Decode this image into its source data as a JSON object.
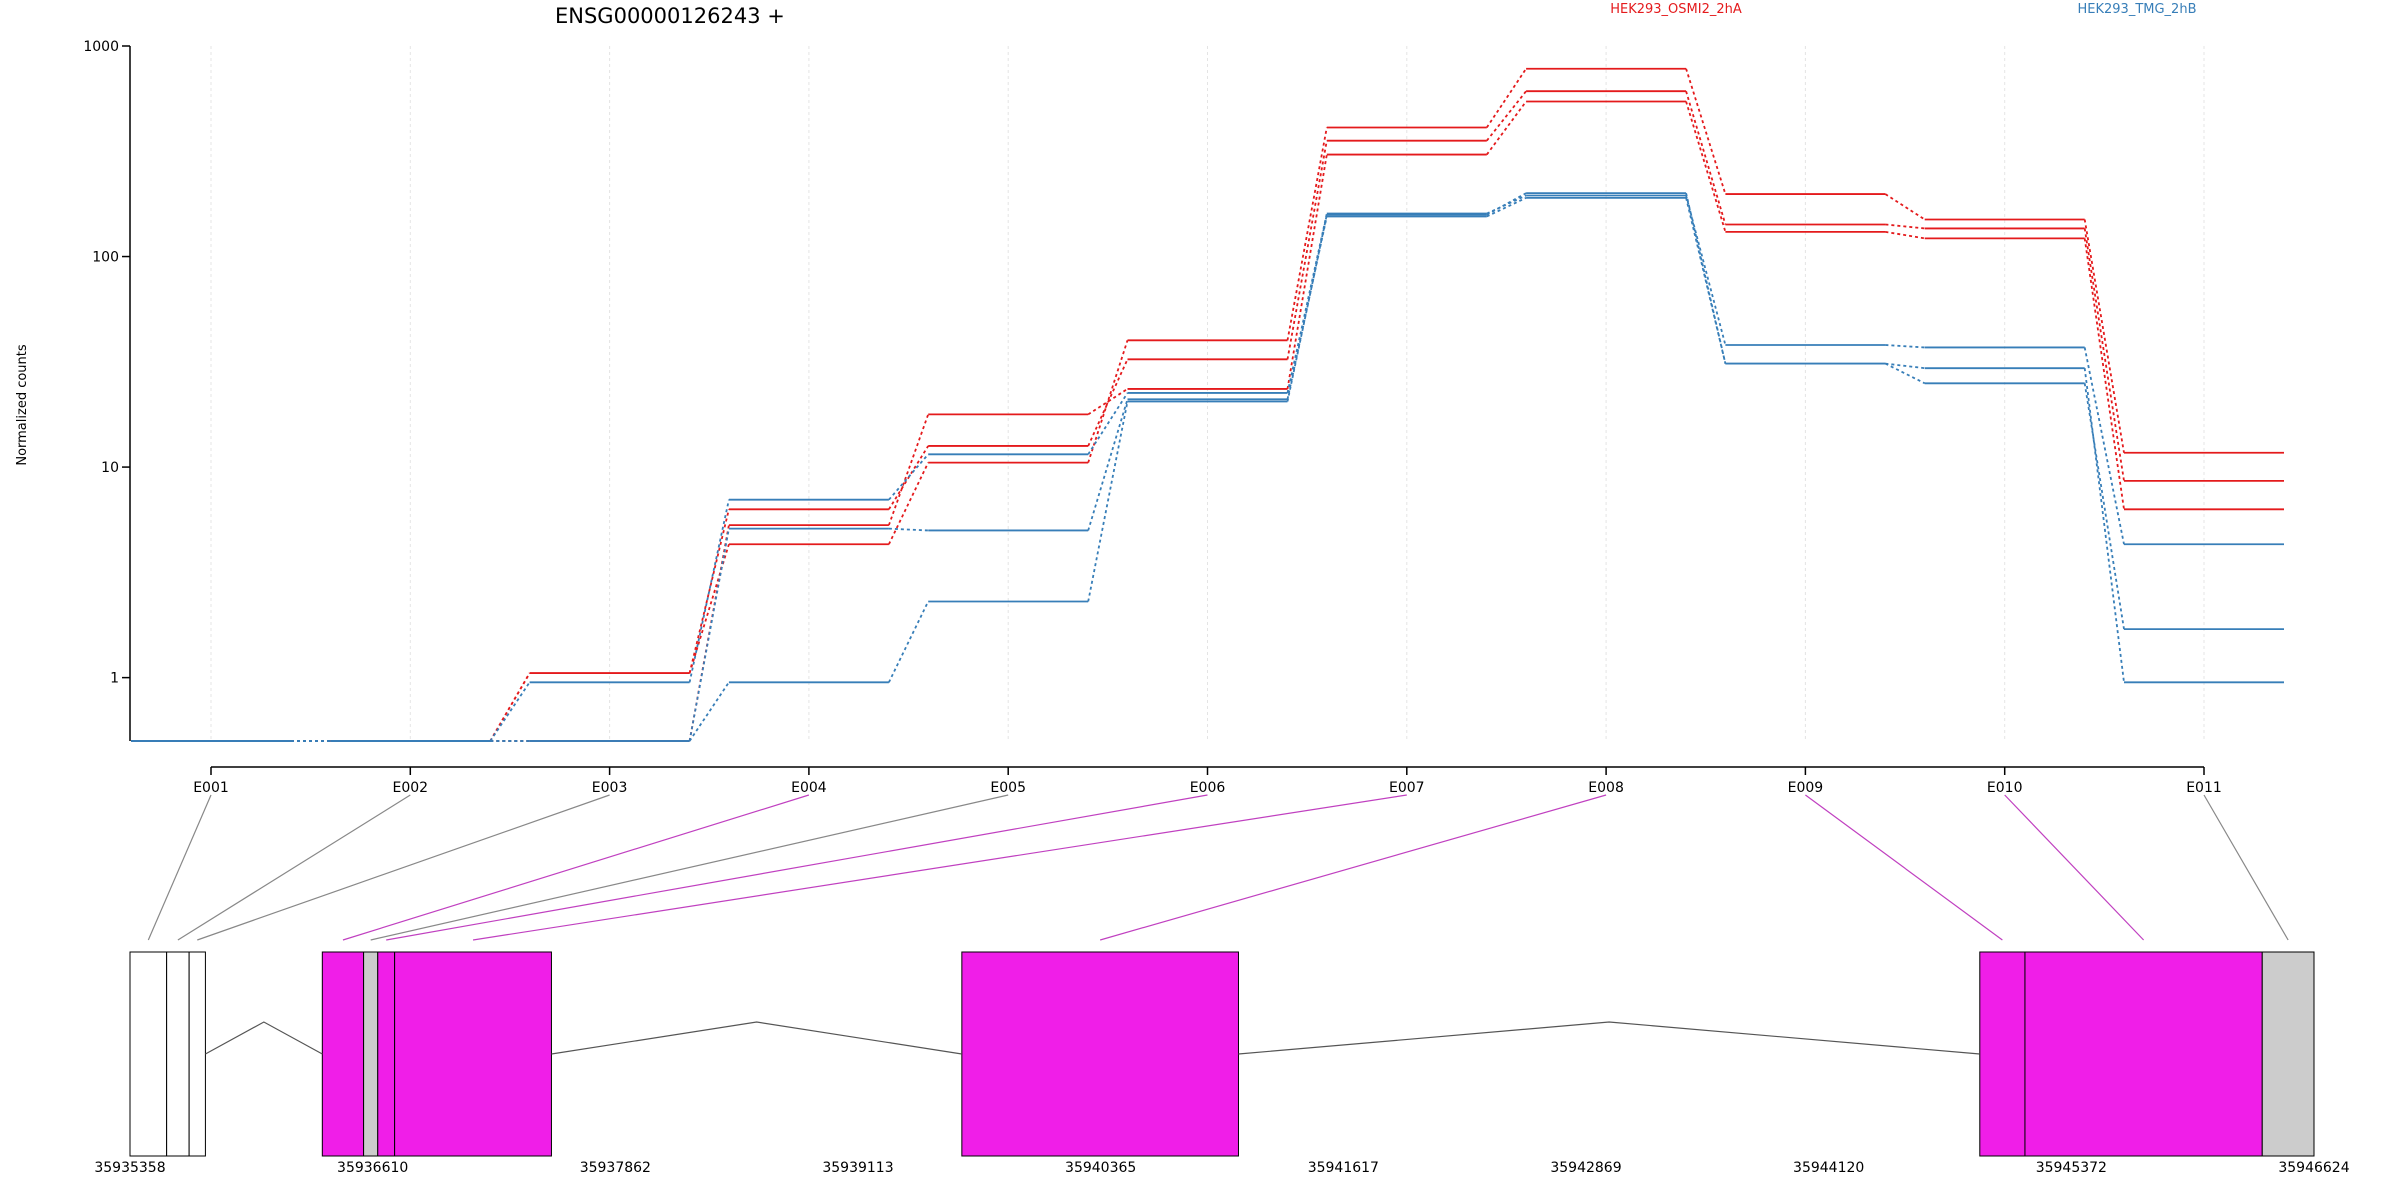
{
  "chart_data": {
    "type": "line",
    "title": "ENSG00000126243 +",
    "ylabel": "Normalized counts",
    "xlabel": "",
    "y_scale": "log",
    "ylim": [
      0.5,
      1000
    ],
    "y_ticks": [
      "1",
      "10",
      "100",
      "1000"
    ],
    "y_tick_values": [
      1,
      10,
      100,
      1000
    ],
    "grid": "vertical",
    "legend": {
      "placement": "top-right",
      "entries": [
        {
          "label": "HEK293_OSMI2_2hA",
          "color": "#e41a1c"
        },
        {
          "label": "HEK293_TMG_2hB",
          "color": "#377eb8"
        }
      ]
    },
    "categories": [
      "E001",
      "E002",
      "E003",
      "E004",
      "E005",
      "E006",
      "E007",
      "E008",
      "E009",
      "E010",
      "E011"
    ],
    "series": [
      {
        "color": "#e41a1c",
        "values": [
          0.5,
          0.5,
          1.05,
          6.3,
          12.6,
          32.5,
          355,
          610,
          142,
          136,
          8.6
        ]
      },
      {
        "color": "#e41a1c",
        "values": [
          0.5,
          0.5,
          1.05,
          4.3,
          10.5,
          40,
          410,
          780,
          198,
          150,
          11.7
        ]
      },
      {
        "color": "#e41a1c",
        "values": [
          0.5,
          0.5,
          0.5,
          5.3,
          17.8,
          23.5,
          305,
          545,
          131,
          122,
          6.3
        ]
      },
      {
        "color": "#377eb8",
        "values": [
          0.5,
          0.5,
          0.95,
          7.0,
          11.5,
          22.5,
          160,
          195,
          38,
          37,
          4.3
        ]
      },
      {
        "color": "#377eb8",
        "values": [
          0.5,
          0.5,
          0.5,
          5.1,
          5.0,
          21.0,
          155,
          190,
          31,
          25,
          1.7
        ]
      },
      {
        "color": "#377eb8",
        "values": [
          0.5,
          0.5,
          0.5,
          0.95,
          2.3,
          20.5,
          158,
          200,
          31,
          29.5,
          0.95
        ]
      }
    ],
    "exon_colors": [
      "white",
      "white",
      "white",
      "magenta",
      "grey",
      "magenta",
      "magenta",
      "magenta",
      "magenta",
      "magenta",
      "grey"
    ],
    "gene_model": {
      "x_ticks": [
        "35935358",
        "35936610",
        "35937862",
        "35939113",
        "35940365",
        "35941617",
        "35942869",
        "35944120",
        "35945372",
        "35946624"
      ],
      "range": [
        35935358,
        35946624
      ],
      "highlight_color": "#f01ee8",
      "neutral_color": "#cccccc",
      "exons": [
        {
          "id": "E001",
          "start": 35935358,
          "end": 35935547
        },
        {
          "id": "E002",
          "start": 35935547,
          "end": 35935663
        },
        {
          "id": "E003",
          "start": 35935663,
          "end": 35935747
        },
        {
          "id": "E004",
          "start": 35936350,
          "end": 35936563
        },
        {
          "id": "E005",
          "start": 35936563,
          "end": 35936636
        },
        {
          "id": "E006",
          "start": 35936636,
          "end": 35936723
        },
        {
          "id": "E007",
          "start": 35936723,
          "end": 35937532
        },
        {
          "id": "E008",
          "start": 35939649,
          "end": 35941076
        },
        {
          "id": "E009",
          "start": 35944900,
          "end": 35945133
        },
        {
          "id": "E010",
          "start": 35945133,
          "end": 35946357
        },
        {
          "id": "E011",
          "start": 35946357,
          "end": 35946624
        }
      ]
    }
  }
}
